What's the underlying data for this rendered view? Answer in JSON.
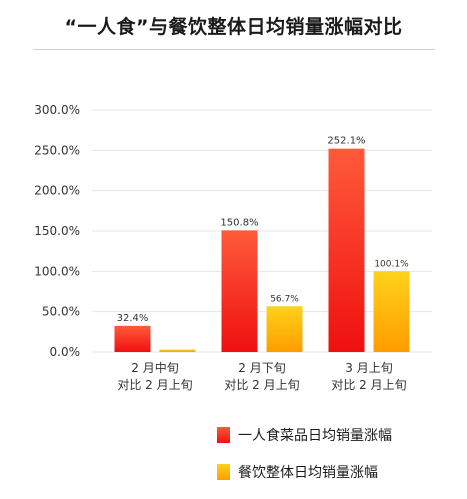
{
  "colors": {
    "series1_top": "#ff5a3a",
    "series1_bottom": "#ef1010",
    "series2_top": "#ffd21a",
    "series2_bottom": "#ff9c00",
    "grid": "#e6e6e6",
    "text": "#333333"
  },
  "chart_data": {
    "type": "bar",
    "title": "“一人食”与餐饮整体日均销量涨幅对比",
    "categories": [
      [
        "2 月中旬",
        "对比 2 月上旬"
      ],
      [
        "2 月下旬",
        "对比 2 月上旬"
      ],
      [
        "3 月上旬",
        "对比 2 月上旬"
      ]
    ],
    "series": [
      {
        "name": "一人食菜品日均销量涨幅",
        "values": [
          32.4,
          150.8,
          252.1
        ],
        "labels": [
          "32.4%",
          "150.8%",
          "252.1%"
        ]
      },
      {
        "name": "餐饮整体日均销量涨幅",
        "values": [
          3.0,
          56.7,
          100.1
        ],
        "labels": [
          "",
          "56.7%",
          "100.1%"
        ]
      }
    ],
    "y_ticks": [
      "0.0%",
      "50.0%",
      "100.0%",
      "150.0%",
      "200.0%",
      "250.0%",
      "300.0%"
    ],
    "ylim": [
      0,
      300
    ],
    "grid": true,
    "legend_position": "bottom-right"
  }
}
